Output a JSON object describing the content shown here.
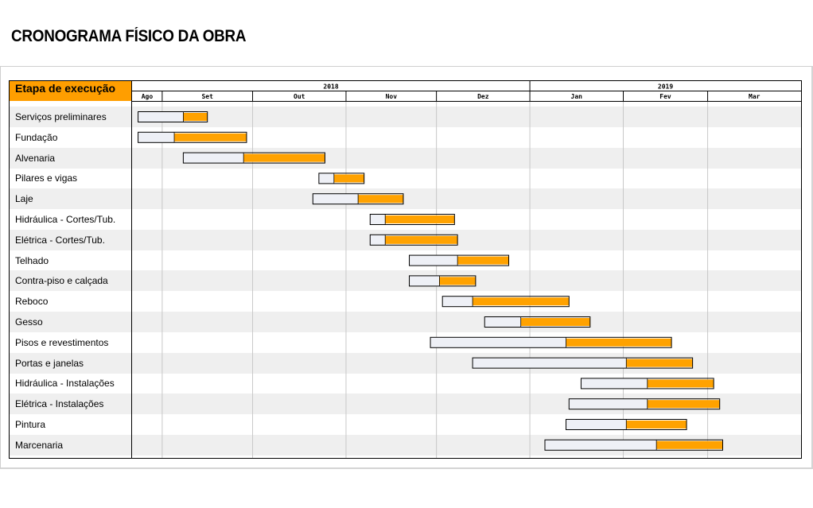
{
  "page": {
    "title": "CRONOGRAMA FÍSICO DA OBRA"
  },
  "chart_data": {
    "type": "gantt",
    "label_header": "Etapa de execução",
    "years": [
      {
        "label": "2018",
        "start": "2018-08-22",
        "end": "2018-12-31"
      },
      {
        "label": "2019",
        "start": "2019-01-01",
        "end": "2019-03-31"
      }
    ],
    "months": [
      {
        "label": "Ago",
        "start": "2018-08-22",
        "end": "2018-08-31"
      },
      {
        "label": "Set",
        "start": "2018-09-01",
        "end": "2018-09-30"
      },
      {
        "label": "Out",
        "start": "2018-10-01",
        "end": "2018-10-31"
      },
      {
        "label": "Nov",
        "start": "2018-11-01",
        "end": "2018-11-30"
      },
      {
        "label": "Dez",
        "start": "2018-12-01",
        "end": "2018-12-31"
      },
      {
        "label": "Jan",
        "start": "2019-01-01",
        "end": "2019-01-31"
      },
      {
        "label": "Fev",
        "start": "2019-02-01",
        "end": "2019-02-28"
      },
      {
        "label": "Mar",
        "start": "2019-03-01",
        "end": "2019-03-31"
      }
    ],
    "x_range": [
      "2018-08-22",
      "2019-03-31"
    ],
    "colors": {
      "planned": "#eef0f6",
      "progress": "#ffa200",
      "header": "#ff9e00",
      "row_alt": "#efefef"
    },
    "tasks": [
      {
        "name": "Serviços preliminares",
        "start": "2018-08-24",
        "end": "2018-09-15",
        "split": "2018-09-08"
      },
      {
        "name": "Fundação",
        "start": "2018-08-24",
        "end": "2018-09-28",
        "split": "2018-09-05"
      },
      {
        "name": "Alvenaria",
        "start": "2018-09-08",
        "end": "2018-10-24",
        "split": "2018-09-28"
      },
      {
        "name": "Pilares e vigas",
        "start": "2018-10-23",
        "end": "2018-11-06",
        "split": "2018-10-28"
      },
      {
        "name": "Laje",
        "start": "2018-10-21",
        "end": "2018-11-19",
        "split": "2018-11-05"
      },
      {
        "name": "Hidráulica - Cortes/Tub.",
        "start": "2018-11-09",
        "end": "2018-12-06",
        "split": "2018-11-14"
      },
      {
        "name": "Elétrica - Cortes/Tub.",
        "start": "2018-11-09",
        "end": "2018-12-07",
        "split": "2018-11-14"
      },
      {
        "name": "Telhado",
        "start": "2018-11-22",
        "end": "2018-12-24",
        "split": "2018-12-08"
      },
      {
        "name": "Contra-piso e calçada",
        "start": "2018-11-22",
        "end": "2018-12-13",
        "split": "2018-12-02"
      },
      {
        "name": "Reboco",
        "start": "2018-12-03",
        "end": "2019-01-13",
        "split": "2018-12-13"
      },
      {
        "name": "Gesso",
        "start": "2018-12-17",
        "end": "2019-01-20",
        "split": "2018-12-29"
      },
      {
        "name": "Pisos e revestimentos",
        "start": "2018-11-29",
        "end": "2019-02-16",
        "split": "2019-01-13"
      },
      {
        "name": "Portas e janelas",
        "start": "2018-12-13",
        "end": "2019-02-23",
        "split": "2019-02-02"
      },
      {
        "name": "Hidráulica - Instalações",
        "start": "2019-01-18",
        "end": "2019-03-02",
        "split": "2019-02-09"
      },
      {
        "name": "Elétrica - Instalações",
        "start": "2019-01-14",
        "end": "2019-03-04",
        "split": "2019-02-09"
      },
      {
        "name": "Pintura",
        "start": "2019-01-13",
        "end": "2019-02-21",
        "split": "2019-02-02"
      },
      {
        "name": "Marcenaria",
        "start": "2019-01-06",
        "end": "2019-03-05",
        "split": "2019-02-12"
      }
    ]
  }
}
